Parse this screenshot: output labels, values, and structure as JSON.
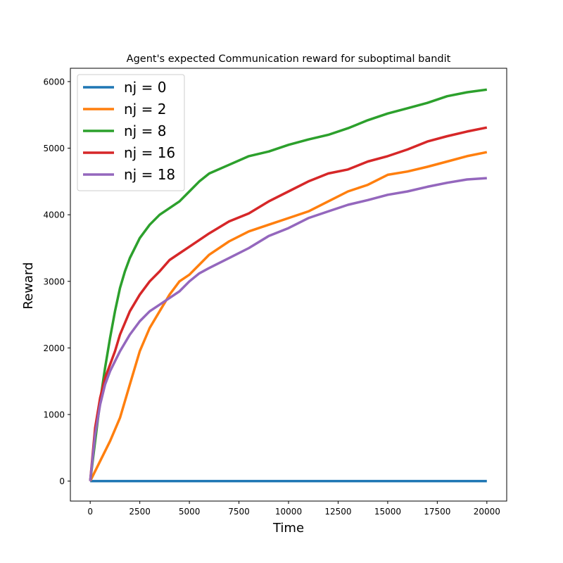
{
  "chart_data": {
    "type": "line",
    "title": "Agent's expected Communication reward for suboptimal bandit",
    "xlabel": "Time",
    "ylabel": "Reward",
    "xlim": [
      -1000,
      21000
    ],
    "ylim": [
      -300,
      6200
    ],
    "x_ticks": [
      0,
      2500,
      5000,
      7500,
      10000,
      12500,
      15000,
      17500,
      20000
    ],
    "y_ticks": [
      0,
      1000,
      2000,
      3000,
      4000,
      5000,
      6000
    ],
    "legend_position": "top-left",
    "grid": false,
    "series": [
      {
        "name": "nj = 0",
        "color": "#1f77b4",
        "x": [
          0,
          20000
        ],
        "y": [
          0,
          0
        ]
      },
      {
        "name": "nj = 2",
        "color": "#ff7f0e",
        "x": [
          0,
          500,
          1000,
          1500,
          2000,
          2500,
          3000,
          3500,
          4000,
          4500,
          5000,
          5500,
          6000,
          7000,
          8000,
          9000,
          10000,
          11000,
          12000,
          13000,
          14000,
          15000,
          16000,
          17000,
          18000,
          19000,
          20000
        ],
        "y": [
          0,
          300,
          600,
          950,
          1450,
          1950,
          2300,
          2550,
          2800,
          3000,
          3100,
          3250,
          3400,
          3600,
          3750,
          3850,
          3950,
          4050,
          4200,
          4350,
          4450,
          4600,
          4650,
          4720,
          4800,
          4880,
          4940
        ]
      },
      {
        "name": "nj = 8",
        "color": "#2ca02c",
        "x": [
          0,
          250,
          500,
          750,
          1000,
          1250,
          1500,
          1750,
          2000,
          2500,
          3000,
          3500,
          4000,
          4500,
          5000,
          5500,
          6000,
          7000,
          8000,
          9000,
          10000,
          11000,
          12000,
          13000,
          14000,
          15000,
          16000,
          17000,
          18000,
          19000,
          20000
        ],
        "y": [
          0,
          600,
          1200,
          1700,
          2150,
          2550,
          2900,
          3150,
          3350,
          3650,
          3850,
          4000,
          4100,
          4200,
          4350,
          4500,
          4620,
          4750,
          4880,
          4950,
          5050,
          5130,
          5200,
          5300,
          5420,
          5520,
          5600,
          5680,
          5780,
          5840,
          5880
        ]
      },
      {
        "name": "nj = 16",
        "color": "#d62728",
        "x": [
          0,
          250,
          500,
          750,
          1000,
          1250,
          1500,
          2000,
          2500,
          3000,
          3500,
          4000,
          4500,
          5000,
          5500,
          6000,
          7000,
          8000,
          9000,
          10000,
          11000,
          12000,
          13000,
          14000,
          15000,
          16000,
          17000,
          18000,
          19000,
          20000
        ],
        "y": [
          0,
          800,
          1250,
          1550,
          1750,
          1950,
          2200,
          2550,
          2800,
          3000,
          3150,
          3320,
          3420,
          3520,
          3620,
          3720,
          3900,
          4020,
          4200,
          4350,
          4500,
          4620,
          4680,
          4800,
          4880,
          4980,
          5100,
          5180,
          5250,
          5310
        ]
      },
      {
        "name": "nj = 18",
        "color": "#9467bd",
        "x": [
          0,
          250,
          500,
          750,
          1000,
          1250,
          1500,
          2000,
          2500,
          3000,
          3500,
          4000,
          4500,
          5000,
          5500,
          6000,
          7000,
          8000,
          9000,
          10000,
          11000,
          12000,
          13000,
          14000,
          15000,
          16000,
          17000,
          18000,
          19000,
          20000
        ],
        "y": [
          0,
          700,
          1150,
          1450,
          1650,
          1800,
          1950,
          2200,
          2400,
          2550,
          2650,
          2750,
          2850,
          3000,
          3120,
          3200,
          3350,
          3500,
          3680,
          3800,
          3950,
          4050,
          4150,
          4220,
          4300,
          4350,
          4420,
          4480,
          4530,
          4550
        ]
      }
    ]
  }
}
